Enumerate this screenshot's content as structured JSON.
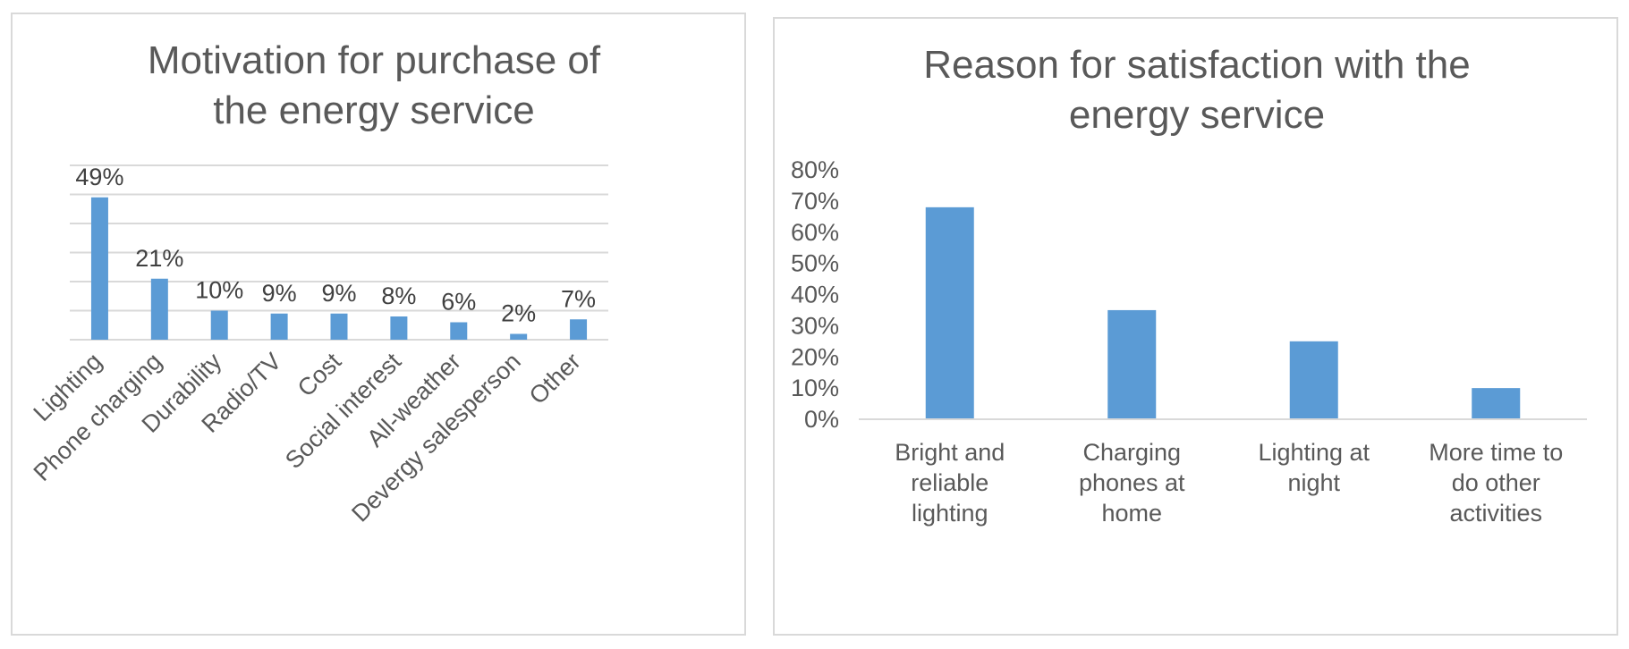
{
  "chart_data": [
    {
      "type": "bar",
      "title_lines": [
        "Motivation for purchase of",
        "the energy service"
      ],
      "categories": [
        "Lighting",
        "Phone charging",
        "Durability",
        "Radio/TV",
        "Cost",
        "Social interest",
        "All-weather",
        "Devergy salesperson",
        "Other"
      ],
      "values": [
        49,
        21,
        10,
        9,
        9,
        8,
        6,
        2,
        7
      ],
      "data_labels": [
        "49%",
        "21%",
        "10%",
        "9%",
        "9%",
        "8%",
        "6%",
        "2%",
        "7%"
      ],
      "ylim": [
        0,
        60
      ],
      "y_tick_labels_visible": false,
      "grid": true,
      "bar_color": "#5b9bd5"
    },
    {
      "type": "bar",
      "title_lines": [
        "Reason for satisfaction with the",
        "energy service"
      ],
      "categories": [
        "Bright and reliable lighting",
        "Charging phones at home",
        "Lighting at night",
        "More time to do other activities"
      ],
      "category_lines": [
        [
          "Bright and",
          "reliable",
          "lighting"
        ],
        [
          "Charging",
          "phones at",
          "home"
        ],
        [
          "Lighting at",
          "night"
        ],
        [
          "More time to",
          "do other",
          "activities"
        ]
      ],
      "values": [
        68,
        35,
        25,
        10
      ],
      "y_ticks": [
        "0%",
        "10%",
        "20%",
        "30%",
        "40%",
        "50%",
        "60%",
        "70%",
        "80%"
      ],
      "ylim": [
        0,
        80
      ],
      "grid": false,
      "bar_color": "#5b9bd5"
    }
  ]
}
